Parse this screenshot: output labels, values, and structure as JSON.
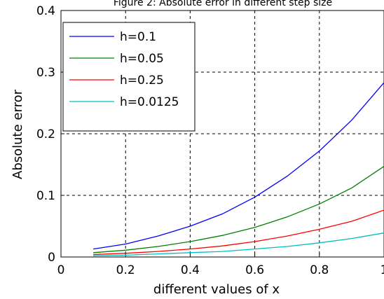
{
  "chart_data": {
    "type": "line",
    "title": "Figure 2: Absolute error in different step size",
    "xlabel": "different values of x",
    "ylabel": "Absolute error",
    "xlim": [
      0,
      1
    ],
    "ylim": [
      0,
      0.4
    ],
    "xticks": [
      0,
      0.2,
      0.4,
      0.6,
      0.8,
      1
    ],
    "yticks": [
      0,
      0.1,
      0.2,
      0.3,
      0.4
    ],
    "xtick_labels": [
      "0",
      "0.2",
      "0.4",
      "0.6",
      "0.8",
      "1"
    ],
    "ytick_labels": [
      "0",
      "0.1",
      "0.2",
      "0.3",
      "0.4"
    ],
    "grid": true,
    "grid_style": "dashed",
    "legend_position": "top-left",
    "x": [
      0.1,
      0.2,
      0.3,
      0.4,
      0.5,
      0.6,
      0.7,
      0.8,
      0.9,
      1.0
    ],
    "series": [
      {
        "name": "h=0.1",
        "color": "#0000ff",
        "values": [
          0.013,
          0.021,
          0.034,
          0.05,
          0.07,
          0.097,
          0.131,
          0.172,
          0.222,
          0.283
        ]
      },
      {
        "name": "h=0.05",
        "color": "#008000",
        "values": [
          0.007,
          0.011,
          0.017,
          0.025,
          0.035,
          0.048,
          0.065,
          0.086,
          0.112,
          0.147
        ]
      },
      {
        "name": "h=0.25",
        "color": "#ff0000",
        "values": [
          0.004,
          0.006,
          0.009,
          0.013,
          0.018,
          0.025,
          0.034,
          0.045,
          0.058,
          0.076
        ]
      },
      {
        "name": "h=0.0125",
        "color": "#00bfbf",
        "values": [
          0.002,
          0.003,
          0.005,
          0.007,
          0.009,
          0.013,
          0.017,
          0.023,
          0.03,
          0.039
        ]
      }
    ]
  }
}
